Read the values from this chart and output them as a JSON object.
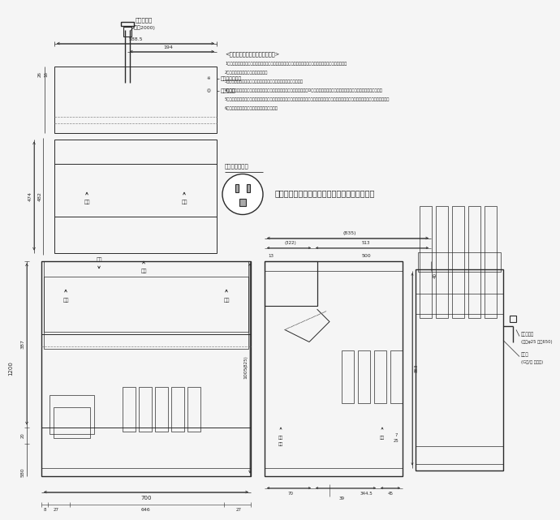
{
  "bg_color": "#f5f5f5",
  "line_color": "#2a2a2a",
  "text_color": "#2a2a2a",
  "dim_color": "#2a2a2a",
  "notes_header": "<設置・使用上のご注意とお願い>",
  "notes": [
    "1．給水層は、給排水工事が必要です。（配管工事は、その地区の指定水道工事店に依頼してください。）",
    "2．必ず水道水を使用してください。",
    "3．電源は、正しく配線された専用のコンセントをお使いください。",
    "4．必ずアースをとってください。アースは法令により、電気工事によるD種接地工事が必要ですので、電気工事店に依頼してください。",
    "5．日常のお手入れとして、凝縮器フィルターの清掃を１カ月に２回ぐらい行う必要があります。（水冷式凝縮器・リモートコンデンサは除く）",
    "6．必ずストレーナーを取り付けてください。"
  ],
  "outlet_label": "コンセント形状",
  "outlet_text": "電源コンセントは必ず接地極付を使用すること",
  "power_cord_label": "電源コード",
  "power_cord_len": "(長さ2000)",
  "drain_hose_pos": "排水ホース位置",
  "water_inlet_pos": "給水口位置",
  "drain_hose_label": "排水ホース",
  "drain_hose_size": "(内径φ25 長さ650)",
  "water_supply_label": "給水口",
  "water_supply_size": "(G１/２ オネジ)"
}
